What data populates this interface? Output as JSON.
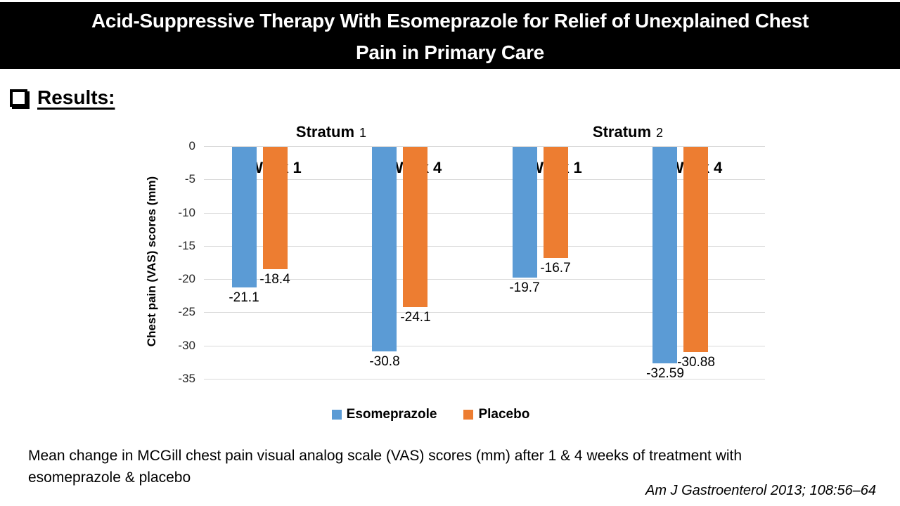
{
  "header": {
    "title_lines": [
      "Acid-Suppressive Therapy With Esomeprazole for Relief of Unexplained Chest",
      "Pain in Primary Care"
    ]
  },
  "section": {
    "heading": "Results:"
  },
  "chart_data": {
    "type": "bar",
    "ylabel": "Chest pain (VAS) scores (mm)",
    "ylim": [
      0,
      -35
    ],
    "ytick_step": 5,
    "yticks": [
      0,
      -5,
      -10,
      -15,
      -20,
      -25,
      -30,
      -35
    ],
    "grid": true,
    "legend_position": "bottom",
    "strata": [
      {
        "word": "Stratum",
        "number": "1"
      },
      {
        "word": "Stratum",
        "number": "2"
      }
    ],
    "group_ids": [
      "s1-week1",
      "s1-week4",
      "s2-week1",
      "s2-week4"
    ],
    "categories": [
      "Week 1",
      "Week 4",
      "Week 1",
      "Week 4"
    ],
    "series": [
      {
        "name": "Esomeprazole",
        "color": "#5B9BD5",
        "values": [
          -21.1,
          -30.8,
          -19.7,
          -32.59
        ]
      },
      {
        "name": "Placebo",
        "color": "#ED7D31",
        "values": [
          -18.4,
          -24.1,
          -16.7,
          -30.88
        ]
      }
    ]
  },
  "caption": {
    "lines": [
      "Mean change in MCGill chest pain visual analog scale (VAS) scores (mm) after 1 & 4 weeks of treatment with",
      "esomeprazole & placebo"
    ]
  },
  "citation": {
    "text": "Am J Gastroenterol 2013; 108:56–64"
  }
}
